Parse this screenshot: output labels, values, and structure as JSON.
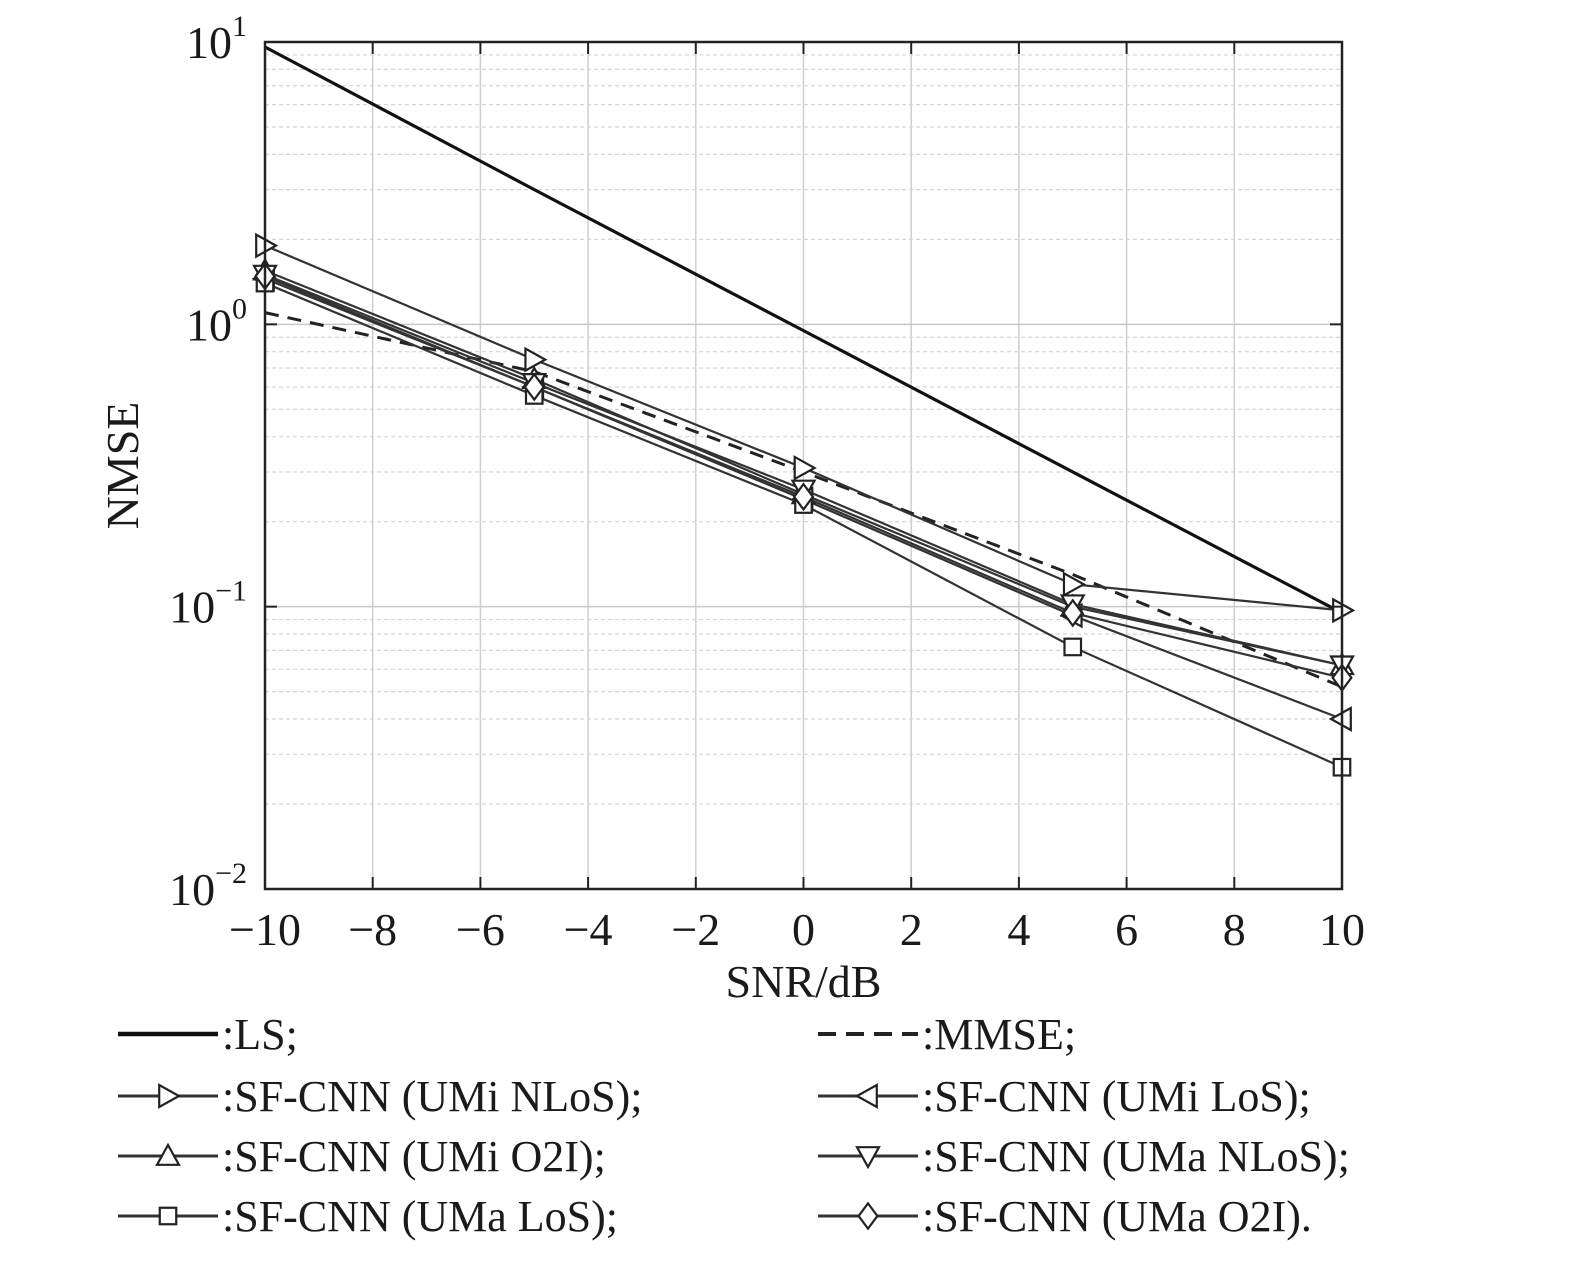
{
  "chart_data": {
    "type": "line",
    "xlabel": "SNR/dB",
    "ylabel": "NMSE",
    "x": [
      -10,
      -5,
      0,
      5,
      10
    ],
    "xlim": [
      -10,
      10
    ],
    "ylim": [
      0.01,
      10
    ],
    "yscale": "log",
    "xticks": [
      -10,
      -8,
      -6,
      -4,
      -2,
      0,
      2,
      4,
      6,
      8,
      10
    ],
    "xtick_labels": [
      "−10",
      "−8",
      "−6",
      "−4",
      "−2",
      "0",
      "2",
      "4",
      "6",
      "8",
      "10"
    ],
    "yticks": [
      {
        "value": 10,
        "base": "10",
        "exp": "1"
      },
      {
        "value": 1,
        "base": "10",
        "exp": "0"
      },
      {
        "value": 0.1,
        "base": "10",
        "exp": "−1"
      },
      {
        "value": 0.01,
        "base": "10",
        "exp": "−2"
      }
    ],
    "grid": true,
    "legend_position": "bottom",
    "series": [
      {
        "name": ":LS;",
        "values": [
          9.6,
          3.0,
          0.95,
          0.3,
          0.095
        ],
        "line": "solid",
        "marker": "none",
        "color": "#111111"
      },
      {
        "name": ":MMSE;",
        "values": [
          1.1,
          0.68,
          0.3,
          0.13,
          0.052
        ],
        "line": "dashed",
        "marker": "none",
        "color": "#222222"
      },
      {
        "name": ":SF-CNN (UMi NLoS);",
        "values": [
          1.9,
          0.75,
          0.31,
          0.12,
          0.097
        ],
        "line": "solid",
        "marker": "triangle-right",
        "color": "#333333"
      },
      {
        "name": ":SF-CNN (UMi LoS);",
        "values": [
          1.45,
          0.6,
          0.24,
          0.093,
          0.04
        ],
        "line": "solid",
        "marker": "triangle-left",
        "color": "#333333"
      },
      {
        "name": ":SF-CNN (UMi O2I);",
        "values": [
          1.55,
          0.64,
          0.25,
          0.1,
          0.062
        ],
        "line": "solid",
        "marker": "triangle-up",
        "color": "#333333"
      },
      {
        "name": ":SF-CNN (UMa NLoS);",
        "values": [
          1.5,
          0.62,
          0.26,
          0.102,
          0.062
        ],
        "line": "solid",
        "marker": "triangle-down",
        "color": "#333333"
      },
      {
        "name": ":SF-CNN (UMa LoS);",
        "values": [
          1.4,
          0.56,
          0.23,
          0.072,
          0.027
        ],
        "line": "solid",
        "marker": "square",
        "color": "#333333"
      },
      {
        "name": ":SF-CNN (UMa O2I).",
        "values": [
          1.48,
          0.6,
          0.245,
          0.095,
          0.056
        ],
        "line": "solid",
        "marker": "diamond",
        "color": "#333333"
      }
    ],
    "legend_order": [
      0,
      1,
      2,
      3,
      4,
      5,
      6,
      7
    ]
  }
}
